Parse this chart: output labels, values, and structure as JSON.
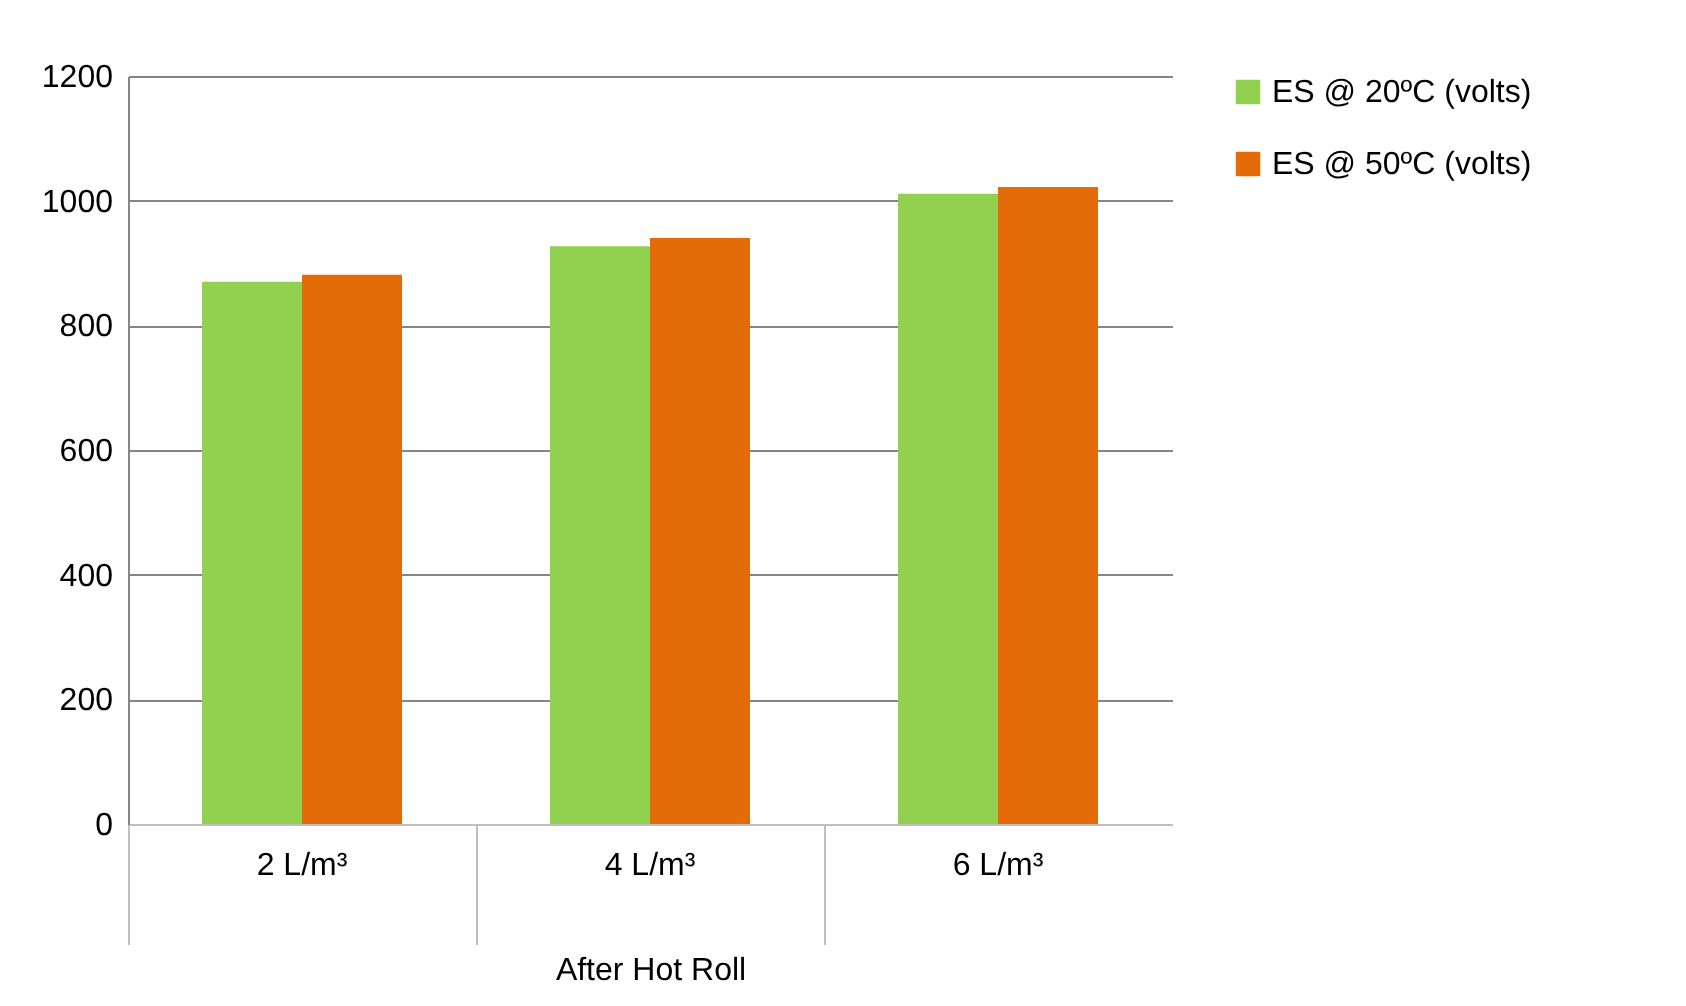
{
  "chart_data": {
    "type": "bar",
    "xlabel": "After Hot Roll",
    "categories": [
      "2 L/m³",
      "4 L/m³",
      "6 L/m³"
    ],
    "series": [
      {
        "name": "ES @ 20ºC (volts)",
        "color": "#92d050",
        "values": [
          870,
          927,
          1011
        ]
      },
      {
        "name": "ES @ 50ºC (volts)",
        "color": "#e36c09",
        "values": [
          881,
          940,
          1022
        ]
      }
    ],
    "ylim": [
      0,
      1200
    ],
    "yticks": [
      0,
      200,
      400,
      600,
      800,
      1000,
      1200
    ],
    "grid": "y",
    "legend": "right"
  }
}
